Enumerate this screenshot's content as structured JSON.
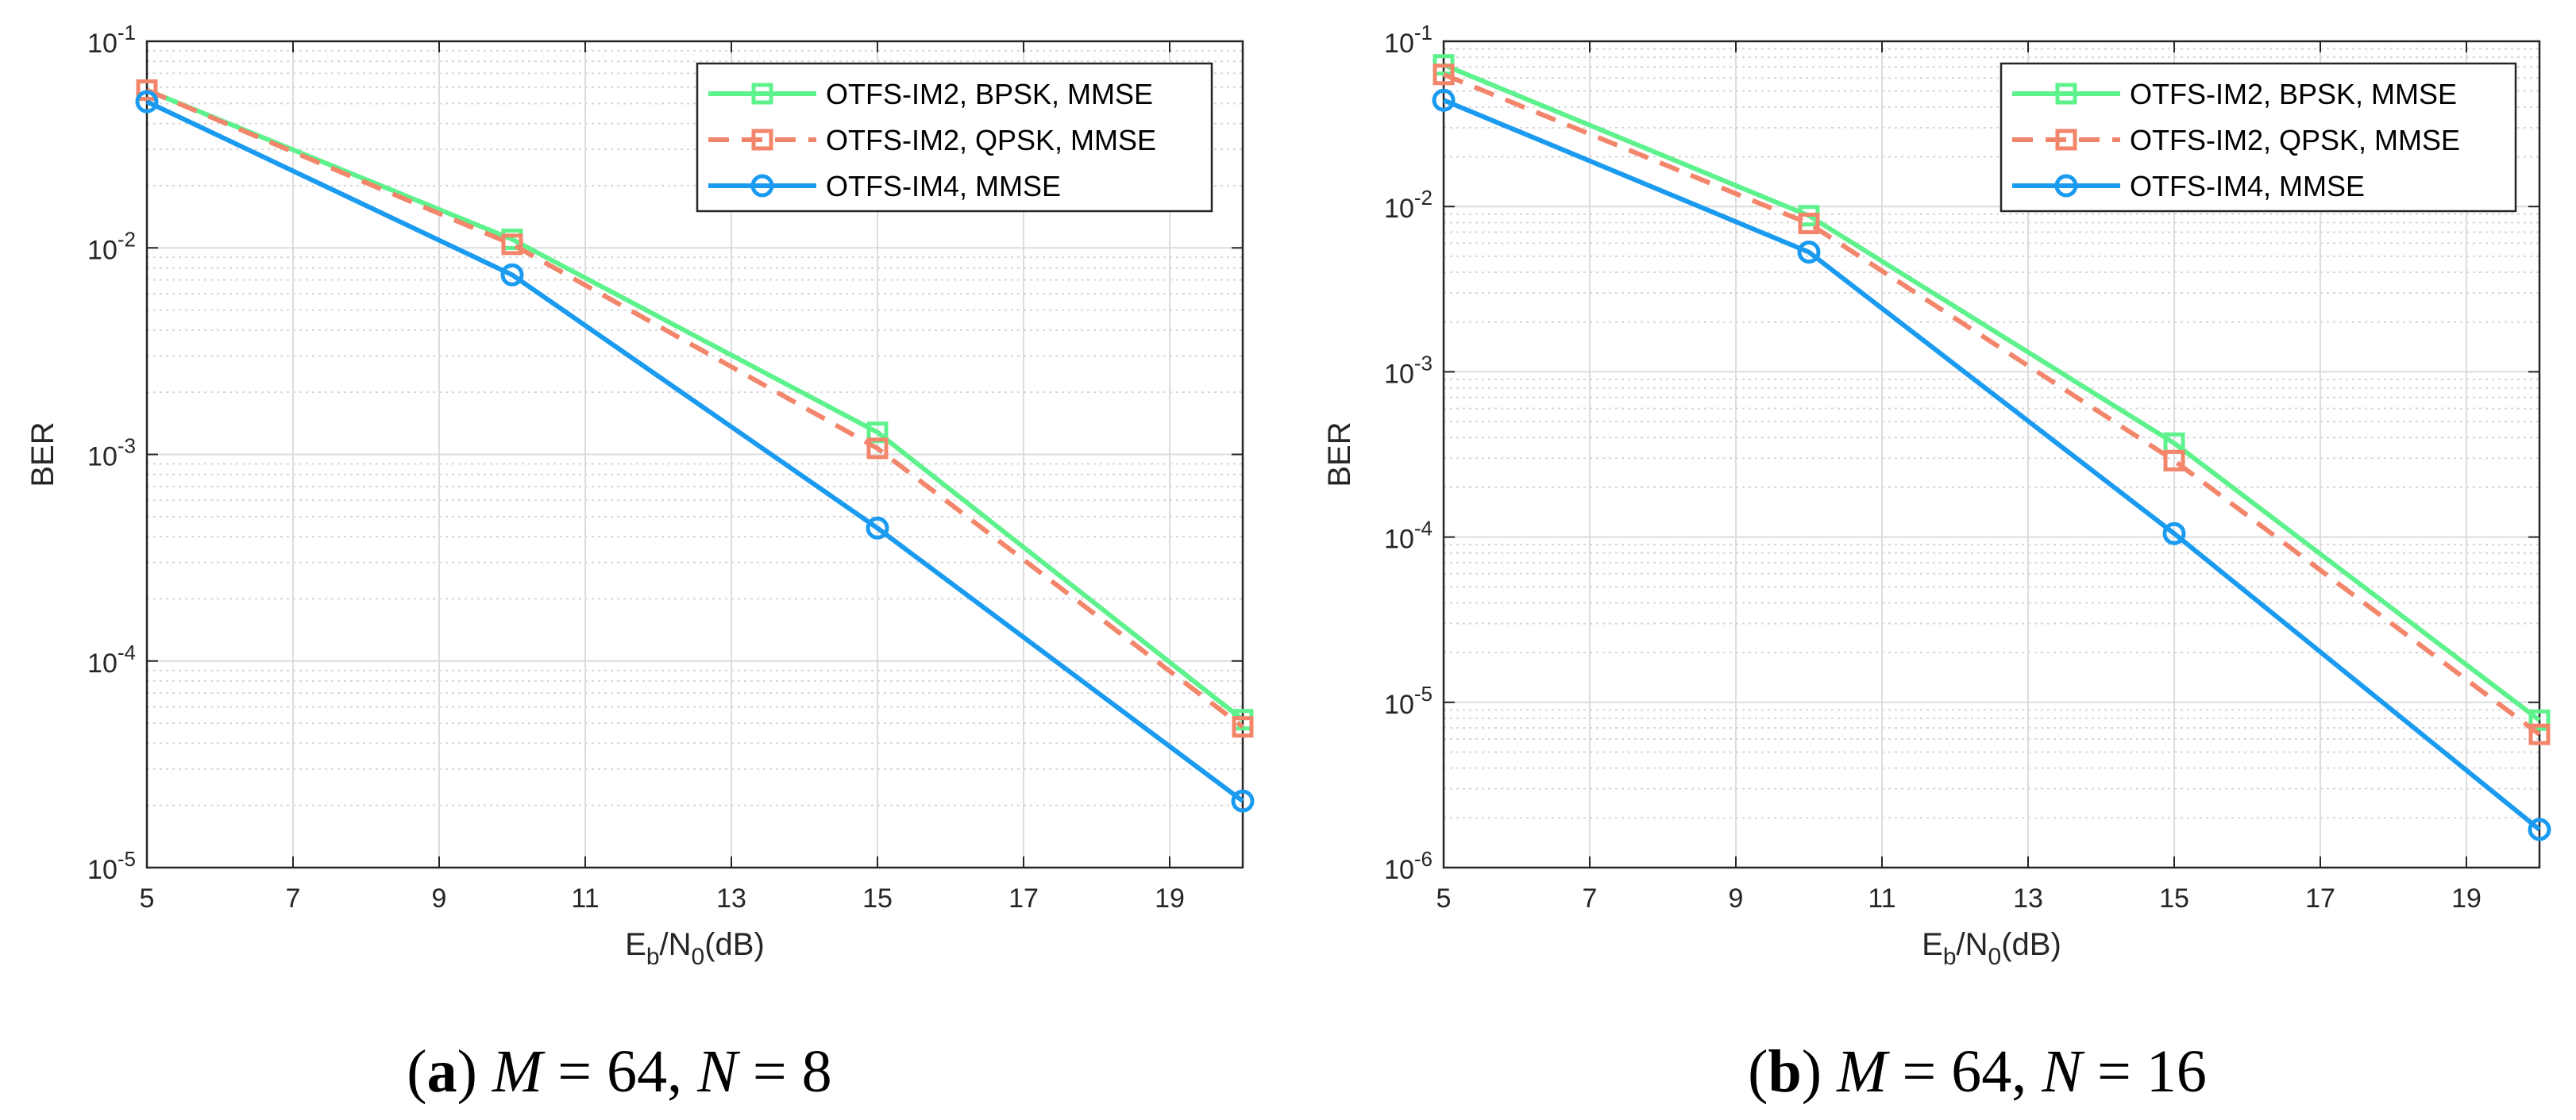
{
  "chart_data": [
    {
      "type": "line",
      "panel": "a",
      "xlabel": "E_b/N_0(dB)",
      "ylabel": "BER",
      "yscale": "log",
      "xlim": [
        5,
        20
      ],
      "ylim": [
        1e-05,
        0.1
      ],
      "xticks": [
        5,
        7,
        9,
        11,
        13,
        15,
        17,
        19
      ],
      "yticks": [
        -5,
        -4,
        -3,
        -2,
        -1
      ],
      "grid": true,
      "legend_position": "top-right",
      "caption": {
        "letter": "(a)",
        "text": "M = 64, N = 8"
      },
      "x": [
        5,
        10,
        15,
        20
      ],
      "series": [
        {
          "name": "OTFS-IM2, BPSK, MMSE",
          "color": "#5ef28d",
          "linestyle": "solid",
          "marker": "square",
          "values": [
            0.058,
            0.011,
            0.00128,
            5.2e-05
          ]
        },
        {
          "name": "OTFS-IM2, QPSK, MMSE",
          "color": "#f2856a",
          "linestyle": "dashed",
          "marker": "square",
          "values": [
            0.058,
            0.0104,
            0.00107,
            4.8e-05
          ]
        },
        {
          "name": "OTFS-IM4, MMSE",
          "color": "#1a9bf0",
          "linestyle": "solid",
          "marker": "circle",
          "values": [
            0.051,
            0.0074,
            0.00044,
            2.1e-05
          ]
        }
      ]
    },
    {
      "type": "line",
      "panel": "b",
      "xlabel": "E_b/N_0(dB)",
      "ylabel": "BER",
      "yscale": "log",
      "xlim": [
        5,
        20
      ],
      "ylim": [
        1e-06,
        0.1
      ],
      "xticks": [
        5,
        7,
        9,
        11,
        13,
        15,
        17,
        19
      ],
      "yticks": [
        -6,
        -5,
        -4,
        -3,
        -2,
        -1
      ],
      "grid": true,
      "legend_position": "top-right",
      "caption": {
        "letter": "(b)",
        "text": "M = 64, N = 16"
      },
      "x": [
        5,
        10,
        15,
        20
      ],
      "series": [
        {
          "name": "OTFS-IM2, BPSK, MMSE",
          "color": "#5ef28d",
          "linestyle": "solid",
          "marker": "square",
          "values": [
            0.072,
            0.0088,
            0.00037,
            7.8e-06
          ]
        },
        {
          "name": "OTFS-IM2, QPSK, MMSE",
          "color": "#f2856a",
          "linestyle": "dashed",
          "marker": "square",
          "values": [
            0.063,
            0.0079,
            0.00029,
            6.4e-06
          ]
        },
        {
          "name": "OTFS-IM4, MMSE",
          "color": "#1a9bf0",
          "linestyle": "solid",
          "marker": "circle",
          "values": [
            0.044,
            0.0053,
            0.000105,
            1.7e-06
          ]
        }
      ]
    }
  ]
}
